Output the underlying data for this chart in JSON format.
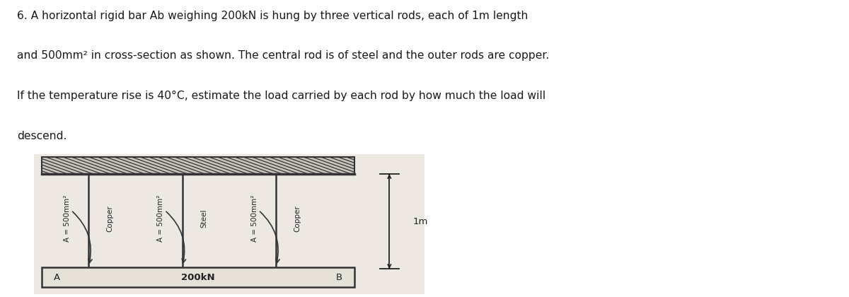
{
  "background_color": "#ffffff",
  "text_color": "#1a1a1a",
  "problem_text_lines": [
    "6. A horizontal rigid bar Ab weighing 200kN is hung by three vertical rods, each of 1m length",
    "and 500mm² in cross-section as shown. The central rod is of steel and the outer rods are copper.",
    "If the temperature rise is 40°C, estimate the load carried by each rod by how much the load will",
    "descend."
  ],
  "diagram": {
    "bg_color": "#ede9e2",
    "hatch_color": "#333333",
    "rod_color": "#333333",
    "bar_color": "#333333",
    "label_color": "#222222",
    "rod_labels": [
      "A = 500mm²",
      "A = 500mm²",
      "A = 500mm²"
    ],
    "material_labels": [
      "Copper",
      "Steel",
      "Copper"
    ],
    "bar_label": "200kN",
    "bar_A_label": "A",
    "bar_B_label": "B",
    "height_label": "1m"
  }
}
